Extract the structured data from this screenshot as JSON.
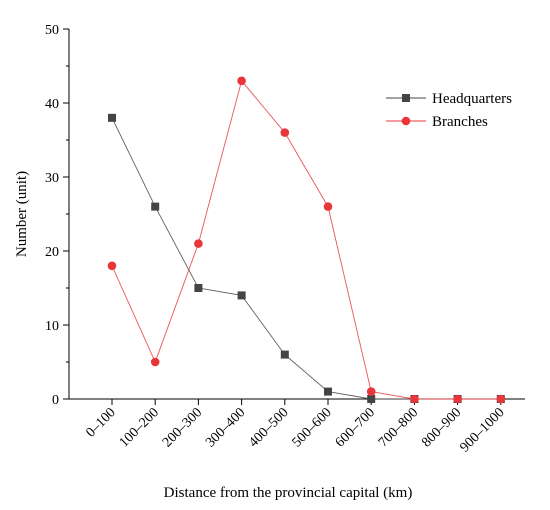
{
  "chart_data": {
    "type": "line",
    "xlabel": "Distance from the provincial capital (km)",
    "ylabel": "Number (unit)",
    "ylim": [
      0,
      50
    ],
    "yticks": [
      "0",
      "10",
      "20",
      "30",
      "40",
      "50"
    ],
    "categories": [
      "0–100",
      "100–200",
      "200–300",
      "300–400",
      "400–500",
      "500–600",
      "600–700",
      "700–800",
      "800–900",
      "900–1000"
    ],
    "legend_position": "top-right",
    "grid": false,
    "series": [
      {
        "name": "Headquarters",
        "marker": "square",
        "color": "#444444",
        "values": [
          38,
          26,
          15,
          14,
          6,
          1,
          0,
          0,
          0,
          0
        ]
      },
      {
        "name": "Branches",
        "marker": "circle",
        "color": "#e8363a",
        "values": [
          18,
          5,
          21,
          43,
          36,
          26,
          1,
          0,
          0,
          0
        ]
      }
    ]
  }
}
